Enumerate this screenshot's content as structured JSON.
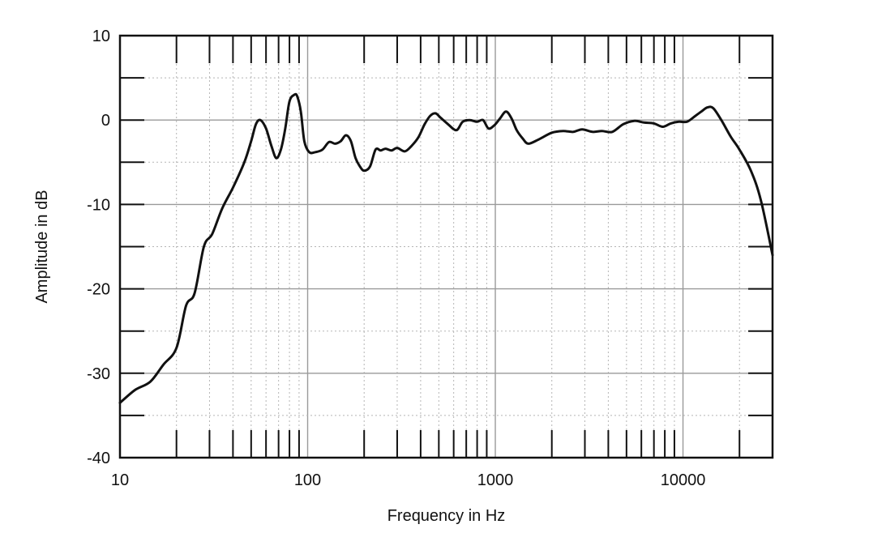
{
  "chart_data": {
    "type": "line",
    "xlabel": "Frequency in Hz",
    "ylabel": "Amplitude in dB",
    "x_scale": "log",
    "xlim": [
      10,
      30000
    ],
    "ylim": [
      -40,
      10
    ],
    "x_ticks": [
      10,
      100,
      1000,
      10000
    ],
    "x_tick_labels": [
      "10",
      "100",
      "1000",
      "10000"
    ],
    "y_ticks": [
      10,
      0,
      -10,
      -20,
      -30,
      -40
    ],
    "y_tick_labels": [
      "10",
      "0",
      "-10",
      "-20",
      "-30",
      "-40"
    ],
    "grid": true,
    "colors": {
      "line": "#111111",
      "grid_major": "#9a9a9a",
      "grid_minor": "#b5b5b5",
      "frame": "#111111"
    },
    "series": [
      {
        "points": [
          [
            10,
            -33.5
          ],
          [
            12,
            -32
          ],
          [
            14.5,
            -31
          ],
          [
            17,
            -29
          ],
          [
            20,
            -27
          ],
          [
            22.5,
            -22
          ],
          [
            25,
            -20.5
          ],
          [
            28,
            -15
          ],
          [
            31,
            -13.5
          ],
          [
            35,
            -10.5
          ],
          [
            40,
            -8
          ],
          [
            46,
            -5
          ],
          [
            50,
            -2.5
          ],
          [
            53,
            -0.5
          ],
          [
            56,
            0
          ],
          [
            60,
            -1
          ],
          [
            64,
            -3
          ],
          [
            68,
            -4.5
          ],
          [
            72,
            -3.5
          ],
          [
            76,
            -1
          ],
          [
            80,
            2.2
          ],
          [
            85,
            3
          ],
          [
            88,
            2.8
          ],
          [
            92,
            1
          ],
          [
            96,
            -2.5
          ],
          [
            102,
            -3.8
          ],
          [
            110,
            -3.8
          ],
          [
            120,
            -3.5
          ],
          [
            130,
            -2.6
          ],
          [
            140,
            -2.8
          ],
          [
            150,
            -2.5
          ],
          [
            160,
            -1.8
          ],
          [
            170,
            -2.5
          ],
          [
            180,
            -4.5
          ],
          [
            190,
            -5.5
          ],
          [
            200,
            -6
          ],
          [
            215,
            -5.5
          ],
          [
            230,
            -3.5
          ],
          [
            245,
            -3.6
          ],
          [
            260,
            -3.4
          ],
          [
            280,
            -3.6
          ],
          [
            300,
            -3.3
          ],
          [
            330,
            -3.7
          ],
          [
            360,
            -3
          ],
          [
            390,
            -2
          ],
          [
            420,
            -0.5
          ],
          [
            450,
            0.5
          ],
          [
            480,
            0.8
          ],
          [
            510,
            0.3
          ],
          [
            560,
            -0.5
          ],
          [
            620,
            -1.2
          ],
          [
            670,
            -0.2
          ],
          [
            730,
            0
          ],
          [
            800,
            -0.2
          ],
          [
            860,
            0
          ],
          [
            920,
            -1
          ],
          [
            990,
            -0.6
          ],
          [
            1060,
            0.2
          ],
          [
            1140,
            1
          ],
          [
            1220,
            0.2
          ],
          [
            1300,
            -1.2
          ],
          [
            1400,
            -2.2
          ],
          [
            1500,
            -2.8
          ],
          [
            1700,
            -2.3
          ],
          [
            2000,
            -1.5
          ],
          [
            2300,
            -1.3
          ],
          [
            2600,
            -1.4
          ],
          [
            2900,
            -1.1
          ],
          [
            3300,
            -1.4
          ],
          [
            3700,
            -1.3
          ],
          [
            4200,
            -1.4
          ],
          [
            4800,
            -0.5
          ],
          [
            5500,
            -0.1
          ],
          [
            6200,
            -0.3
          ],
          [
            7000,
            -0.4
          ],
          [
            7800,
            -0.8
          ],
          [
            8600,
            -0.4
          ],
          [
            9500,
            -0.2
          ],
          [
            10500,
            -0.2
          ],
          [
            11500,
            0.4
          ],
          [
            12500,
            1
          ],
          [
            13500,
            1.5
          ],
          [
            14500,
            1.4
          ],
          [
            16000,
            0
          ],
          [
            18000,
            -2
          ],
          [
            20000,
            -3.5
          ],
          [
            23000,
            -6
          ],
          [
            26000,
            -9.5
          ],
          [
            30000,
            -16
          ]
        ]
      }
    ]
  }
}
